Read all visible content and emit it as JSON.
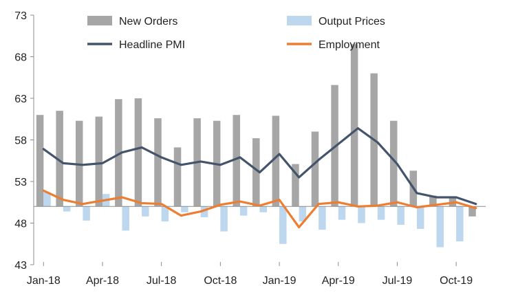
{
  "chart_data": {
    "type": "bar",
    "x": [
      "Jan-18",
      "Feb-18",
      "Mar-18",
      "Apr-18",
      "May-18",
      "Jun-18",
      "Jul-18",
      "Aug-18",
      "Sep-18",
      "Oct-18",
      "Nov-18",
      "Dec-18",
      "Jan-19",
      "Feb-19",
      "Mar-19",
      "Apr-19",
      "May-19",
      "Jun-19",
      "Jul-19",
      "Aug-19",
      "Sep-19",
      "Oct-19",
      "Nov-19"
    ],
    "x_tick_labels": [
      "Jan-18",
      "Apr-18",
      "Jul-18",
      "Oct-18",
      "Jan-19",
      "Apr-19",
      "Jul-19",
      "Oct-19"
    ],
    "y_ticks": [
      "43",
      "48",
      "53",
      "58",
      "63",
      "68",
      "73"
    ],
    "ylim": [
      43,
      73
    ],
    "baseline": 50,
    "series": [
      {
        "name": "New Orders",
        "kind": "bar",
        "color": "#a6a6a6",
        "values": [
          61.0,
          61.5,
          60.3,
          60.8,
          62.9,
          63.0,
          60.6,
          57.1,
          60.6,
          60.3,
          61.0,
          58.2,
          60.9,
          55.1,
          59.0,
          64.6,
          69.5,
          66.0,
          60.3,
          54.3,
          51.3,
          51.0,
          48.8
        ]
      },
      {
        "name": "Output Prices",
        "kind": "bar",
        "color": "#bdd7ee",
        "values": [
          51.7,
          49.4,
          48.3,
          51.5,
          47.1,
          48.8,
          48.2,
          49.3,
          48.7,
          47.0,
          48.9,
          49.3,
          45.5,
          48.2,
          47.2,
          48.4,
          48.0,
          48.4,
          47.8,
          47.3,
          45.1,
          45.8,
          null
        ]
      },
      {
        "name": "Headline PMI",
        "kind": "line",
        "color": "#44546a",
        "values": [
          56.9,
          55.2,
          55.0,
          55.2,
          56.5,
          57.1,
          55.9,
          55.0,
          55.4,
          55.0,
          55.9,
          54.1,
          56.3,
          53.5,
          55.6,
          57.5,
          59.4,
          57.7,
          55.1,
          51.6,
          51.1,
          51.1,
          50.3
        ]
      },
      {
        "name": "Employment",
        "kind": "line",
        "color": "#ed7d31",
        "values": [
          51.9,
          50.8,
          50.3,
          50.7,
          51.1,
          50.4,
          50.3,
          48.9,
          49.4,
          50.2,
          50.6,
          50.1,
          50.8,
          47.5,
          50.3,
          50.5,
          50.0,
          50.1,
          50.5,
          49.9,
          50.2,
          50.5,
          49.8
        ]
      }
    ],
    "legend": {
      "placement": "top",
      "columns": 2
    },
    "grid": false,
    "xlabel": "",
    "ylabel": "",
    "title": ""
  }
}
